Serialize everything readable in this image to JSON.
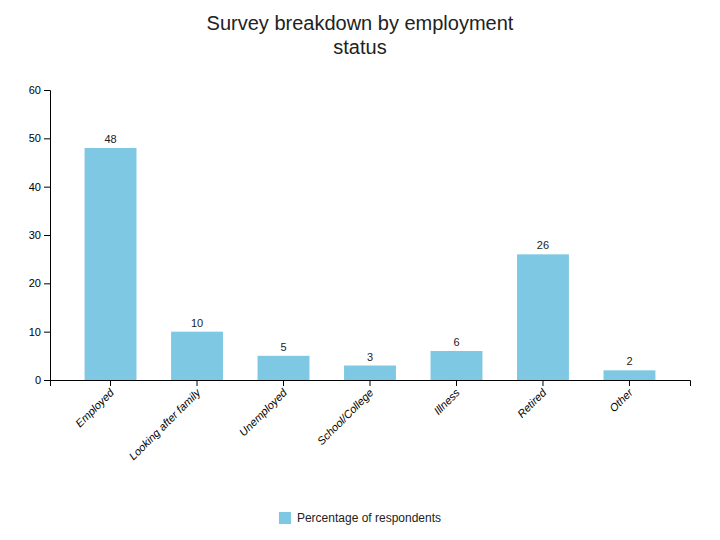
{
  "chart_data": {
    "type": "bar",
    "title": "Survey breakdown by employment\nstatus",
    "categories": [
      "Employed",
      "Looking after family",
      "Unemployed",
      "School/College",
      "Illness",
      "Retired",
      "Other"
    ],
    "series": [
      {
        "name": "Percentage of respondents",
        "color": "#7ec8e3",
        "values": [
          48,
          10,
          5,
          3,
          6,
          26,
          2
        ]
      }
    ],
    "ylim": [
      0,
      60
    ],
    "yticks": [
      0,
      10,
      20,
      30,
      40,
      50,
      60
    ],
    "grid": false,
    "legend": "bottom",
    "data_labels": true
  }
}
